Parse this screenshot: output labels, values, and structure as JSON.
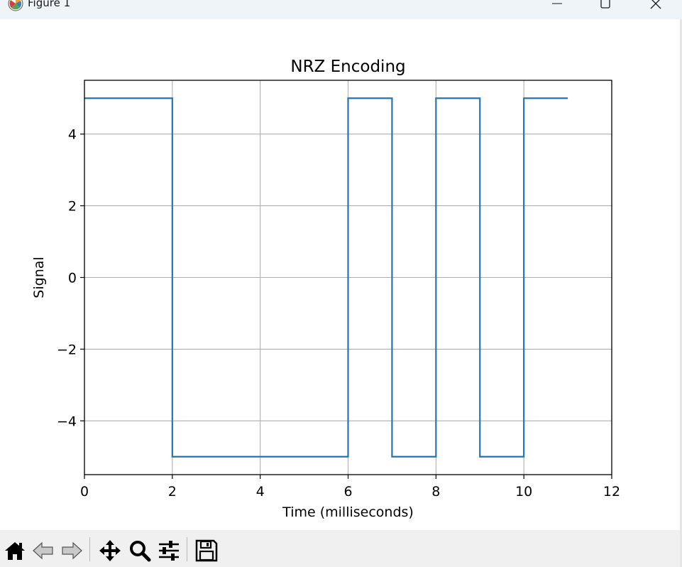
{
  "window": {
    "title": "Figure 1",
    "icons": {
      "app": "matplotlib-icon",
      "minimize": "minimize-icon",
      "maximize": "maximize-icon",
      "close": "close-icon"
    }
  },
  "toolbar": {
    "buttons": [
      {
        "name": "home-button",
        "icon": "home-icon"
      },
      {
        "name": "back-button",
        "icon": "back-arrow-icon"
      },
      {
        "name": "forward-button",
        "icon": "forward-arrow-icon"
      },
      {
        "name": "pan-button",
        "icon": "move-icon"
      },
      {
        "name": "zoom-button",
        "icon": "magnifier-icon"
      },
      {
        "name": "configure-subplots-button",
        "icon": "sliders-icon"
      },
      {
        "name": "save-button",
        "icon": "floppy-disk-icon"
      }
    ]
  },
  "chart_data": {
    "type": "line",
    "drawstyle": "steps-post",
    "title": "NRZ Encoding",
    "xlabel": "Time (milliseconds)",
    "ylabel": "Signal",
    "xlim": [
      0,
      12
    ],
    "ylim": [
      -5.5,
      5.5
    ],
    "xticks": [
      "0",
      "2",
      "4",
      "6",
      "8",
      "10",
      "12"
    ],
    "yticks": [
      "−4",
      "−2",
      "0",
      "2",
      "4"
    ],
    "grid": true,
    "line_color": "#1f77b4",
    "series": [
      {
        "x": [
          0,
          2,
          6,
          7,
          8,
          9,
          10,
          11
        ],
        "y": [
          5,
          -5,
          5,
          -5,
          5,
          -5,
          5,
          5
        ]
      }
    ]
  }
}
